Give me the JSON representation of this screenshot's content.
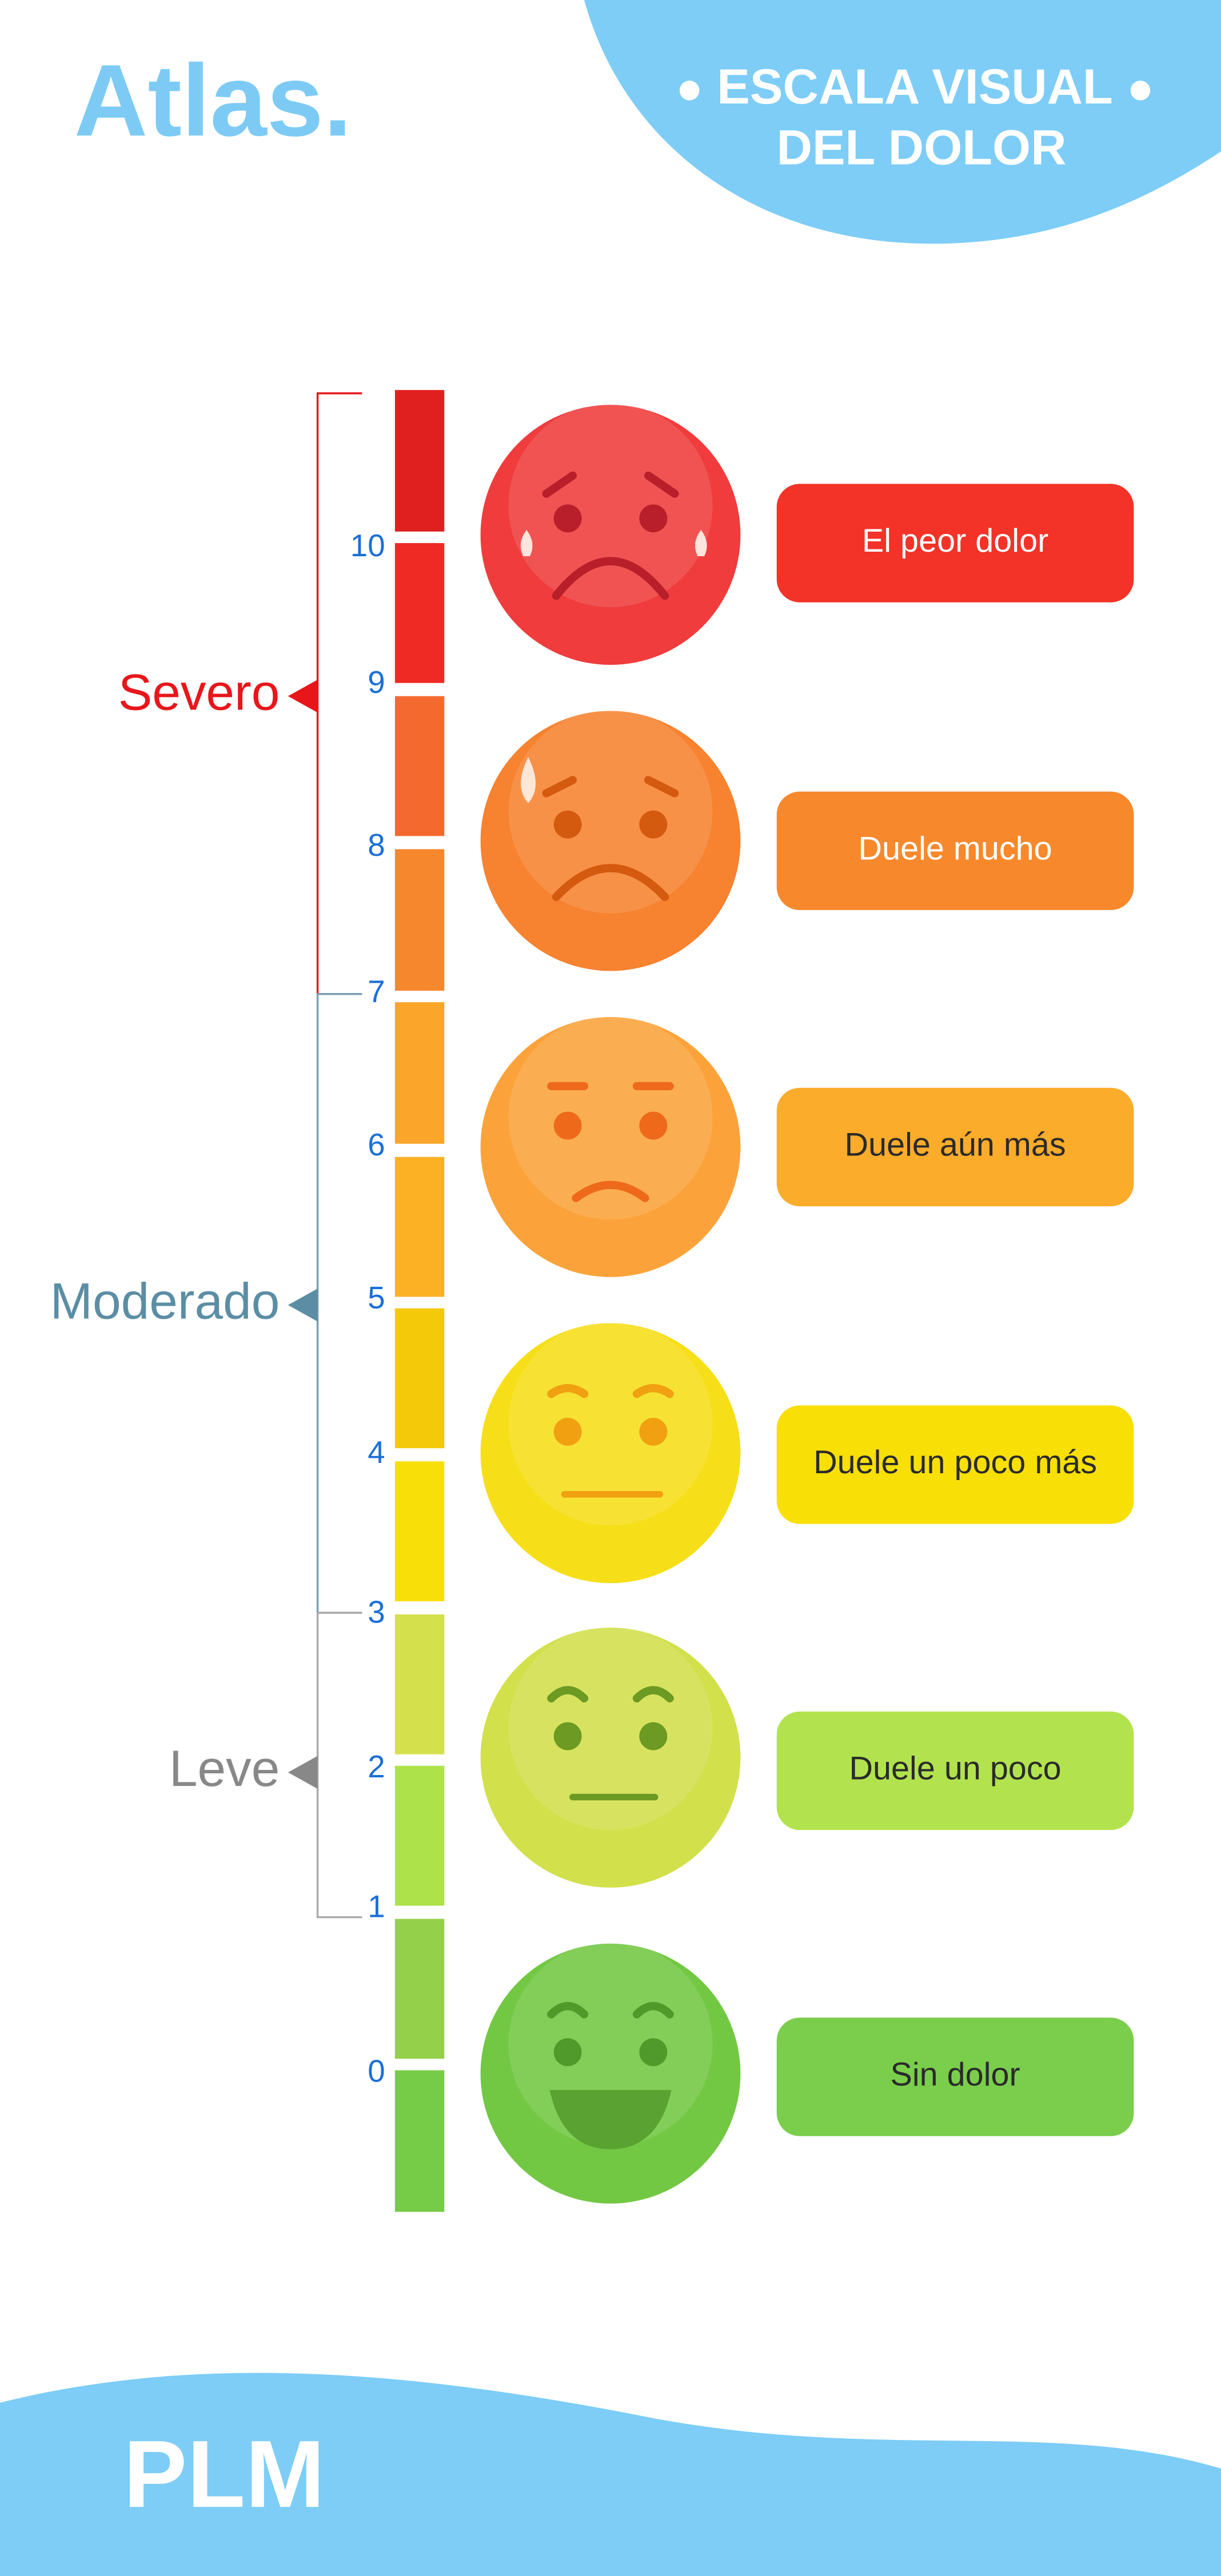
{
  "header": {
    "brand": "Atlas.",
    "title": [
      "ESCALA VISUAL",
      "DEL DOLOR"
    ]
  },
  "scale": {
    "ticks": [
      "10",
      "9",
      "8",
      "7",
      "6",
      "5",
      "4",
      "3",
      "2",
      "1",
      "0"
    ]
  },
  "levels": [
    {
      "label": "Severo"
    },
    {
      "label": "Moderado"
    },
    {
      "label": "Leve"
    }
  ],
  "faces": [
    {
      "label": "El peor dolor"
    },
    {
      "label": "Duele mucho"
    },
    {
      "label": "Duele aún más"
    },
    {
      "label": "Duele un poco más"
    },
    {
      "label": "Duele un poco"
    },
    {
      "label": "Sin dolor"
    }
  ],
  "footer": {
    "brand": "PLM"
  }
}
